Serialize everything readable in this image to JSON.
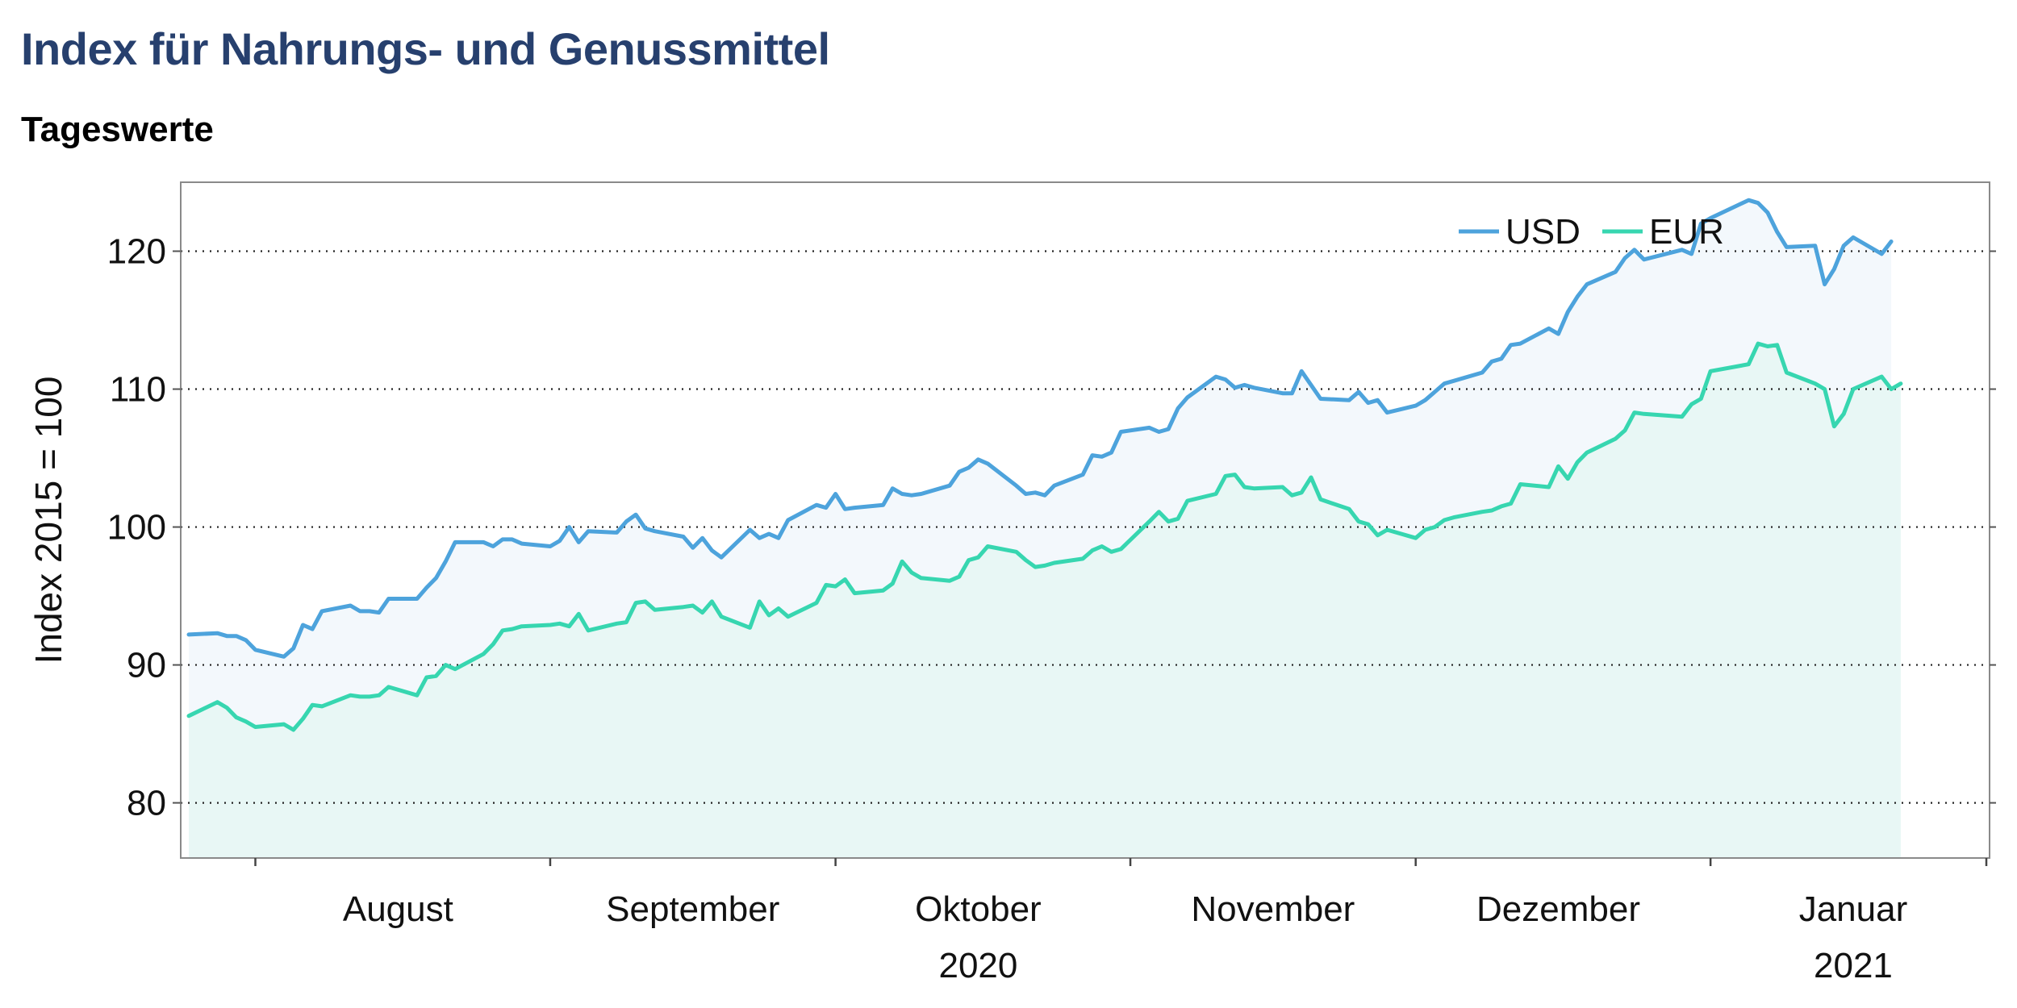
{
  "title": "Index für Nahrungs- und Genussmittel",
  "subtitle": "Tageswerte",
  "colors": {
    "usd": "#4da3dc",
    "eur": "#37d6b0",
    "usd_fill": "#f3f8fc",
    "eur_fill": "#e8f7f5",
    "title": "#27406e"
  },
  "chart_data": {
    "type": "area",
    "ylabel": "Index 2015 = 100",
    "ylim": [
      76,
      125
    ],
    "yticks": [
      80,
      90,
      100,
      110,
      120
    ],
    "grid": "horizontal dotted",
    "legend_position": "top-right",
    "x_start": "2020-07-24",
    "x_end": "2021-01-29",
    "month_boundaries": [
      "2020-07-31",
      "2020-08-31",
      "2020-09-30",
      "2020-10-31",
      "2020-11-30",
      "2020-12-31",
      "2021-01-29"
    ],
    "x_tick_labels": [
      {
        "label": "August",
        "center": "2020-08-15"
      },
      {
        "label": "September",
        "center": "2020-09-15"
      },
      {
        "label": "Oktober",
        "center": "2020-10-15"
      },
      {
        "label": "November",
        "center": "2020-11-15"
      },
      {
        "label": "Dezember",
        "center": "2020-12-15"
      },
      {
        "label": "Januar",
        "center": "2021-01-15"
      }
    ],
    "year_labels": [
      {
        "label": "2020",
        "center": "2020-10-15"
      },
      {
        "label": "2021",
        "center": "2021-01-15"
      }
    ],
    "series": [
      {
        "name": "USD",
        "points": [
          [
            "2020-07-24",
            92.2
          ],
          [
            "2020-07-27",
            92.3
          ],
          [
            "2020-07-28",
            92.1
          ],
          [
            "2020-07-29",
            92.1
          ],
          [
            "2020-07-30",
            91.8
          ],
          [
            "2020-07-31",
            91.1
          ],
          [
            "2020-08-03",
            90.6
          ],
          [
            "2020-08-04",
            91.2
          ],
          [
            "2020-08-05",
            92.9
          ],
          [
            "2020-08-06",
            92.6
          ],
          [
            "2020-08-07",
            93.9
          ],
          [
            "2020-08-10",
            94.3
          ],
          [
            "2020-08-11",
            93.9
          ],
          [
            "2020-08-12",
            93.9
          ],
          [
            "2020-08-13",
            93.8
          ],
          [
            "2020-08-14",
            94.8
          ],
          [
            "2020-08-17",
            94.8
          ],
          [
            "2020-08-18",
            95.6
          ],
          [
            "2020-08-19",
            96.3
          ],
          [
            "2020-08-20",
            97.5
          ],
          [
            "2020-08-21",
            98.9
          ],
          [
            "2020-08-24",
            98.9
          ],
          [
            "2020-08-25",
            98.6
          ],
          [
            "2020-08-26",
            99.1
          ],
          [
            "2020-08-27",
            99.1
          ],
          [
            "2020-08-28",
            98.8
          ],
          [
            "2020-08-31",
            98.6
          ],
          [
            "2020-09-01",
            99.0
          ],
          [
            "2020-09-02",
            100.0
          ],
          [
            "2020-09-03",
            98.9
          ],
          [
            "2020-09-04",
            99.7
          ],
          [
            "2020-09-07",
            99.6
          ],
          [
            "2020-09-08",
            100.4
          ],
          [
            "2020-09-09",
            100.9
          ],
          [
            "2020-09-10",
            99.9
          ],
          [
            "2020-09-11",
            99.7
          ],
          [
            "2020-09-14",
            99.3
          ],
          [
            "2020-09-15",
            98.5
          ],
          [
            "2020-09-16",
            99.2
          ],
          [
            "2020-09-17",
            98.3
          ],
          [
            "2020-09-18",
            97.8
          ],
          [
            "2020-09-21",
            99.8
          ],
          [
            "2020-09-22",
            99.2
          ],
          [
            "2020-09-23",
            99.5
          ],
          [
            "2020-09-24",
            99.2
          ],
          [
            "2020-09-25",
            100.5
          ],
          [
            "2020-09-28",
            101.6
          ],
          [
            "2020-09-29",
            101.4
          ],
          [
            "2020-09-30",
            102.4
          ],
          [
            "2020-10-01",
            101.3
          ],
          [
            "2020-10-02",
            101.4
          ],
          [
            "2020-10-05",
            101.6
          ],
          [
            "2020-10-06",
            102.8
          ],
          [
            "2020-10-07",
            102.4
          ],
          [
            "2020-10-08",
            102.3
          ],
          [
            "2020-10-09",
            102.4
          ],
          [
            "2020-10-12",
            103.0
          ],
          [
            "2020-10-13",
            104.0
          ],
          [
            "2020-10-14",
            104.3
          ],
          [
            "2020-10-15",
            104.9
          ],
          [
            "2020-10-16",
            104.6
          ],
          [
            "2020-10-19",
            103.0
          ],
          [
            "2020-10-20",
            102.4
          ],
          [
            "2020-10-21",
            102.5
          ],
          [
            "2020-10-22",
            102.3
          ],
          [
            "2020-10-23",
            103.0
          ],
          [
            "2020-10-26",
            103.8
          ],
          [
            "2020-10-27",
            105.2
          ],
          [
            "2020-10-28",
            105.1
          ],
          [
            "2020-10-29",
            105.4
          ],
          [
            "2020-10-30",
            106.9
          ],
          [
            "2020-11-02",
            107.2
          ],
          [
            "2020-11-03",
            106.9
          ],
          [
            "2020-11-04",
            107.1
          ],
          [
            "2020-11-05",
            108.6
          ],
          [
            "2020-11-06",
            109.4
          ],
          [
            "2020-11-09",
            110.9
          ],
          [
            "2020-11-10",
            110.7
          ],
          [
            "2020-11-11",
            110.1
          ],
          [
            "2020-11-12",
            110.3
          ],
          [
            "2020-11-13",
            110.1
          ],
          [
            "2020-11-16",
            109.7
          ],
          [
            "2020-11-17",
            109.7
          ],
          [
            "2020-11-18",
            111.3
          ],
          [
            "2020-11-19",
            110.3
          ],
          [
            "2020-11-20",
            109.3
          ],
          [
            "2020-11-23",
            109.2
          ],
          [
            "2020-11-24",
            109.8
          ],
          [
            "2020-11-25",
            109.0
          ],
          [
            "2020-11-26",
            109.2
          ],
          [
            "2020-11-27",
            108.3
          ],
          [
            "2020-11-30",
            108.8
          ],
          [
            "2020-12-01",
            109.2
          ],
          [
            "2020-12-02",
            109.8
          ],
          [
            "2020-12-03",
            110.4
          ],
          [
            "2020-12-04",
            110.6
          ],
          [
            "2020-12-07",
            111.2
          ],
          [
            "2020-12-08",
            112.0
          ],
          [
            "2020-12-09",
            112.2
          ],
          [
            "2020-12-10",
            113.2
          ],
          [
            "2020-12-11",
            113.3
          ],
          [
            "2020-12-14",
            114.4
          ],
          [
            "2020-12-15",
            114.0
          ],
          [
            "2020-12-16",
            115.6
          ],
          [
            "2020-12-17",
            116.7
          ],
          [
            "2020-12-18",
            117.6
          ],
          [
            "2020-12-21",
            118.5
          ],
          [
            "2020-12-22",
            119.5
          ],
          [
            "2020-12-23",
            120.1
          ],
          [
            "2020-12-24",
            119.4
          ],
          [
            "2020-12-28",
            120.1
          ],
          [
            "2020-12-29",
            119.8
          ],
          [
            "2020-12-30",
            122.0
          ],
          [
            "2020-12-31",
            122.4
          ],
          [
            "2021-01-04",
            123.7
          ],
          [
            "2021-01-05",
            123.5
          ],
          [
            "2021-01-06",
            122.8
          ],
          [
            "2021-01-07",
            121.4
          ],
          [
            "2021-01-08",
            120.3
          ],
          [
            "2021-01-11",
            120.4
          ],
          [
            "2021-01-12",
            117.6
          ],
          [
            "2021-01-13",
            118.7
          ],
          [
            "2021-01-14",
            120.4
          ],
          [
            "2021-01-15",
            121.0
          ],
          [
            "2021-01-18",
            119.8
          ],
          [
            "2021-01-19",
            120.7
          ]
        ]
      },
      {
        "name": "EUR",
        "points": [
          [
            "2020-07-24",
            86.3
          ],
          [
            "2020-07-27",
            87.3
          ],
          [
            "2020-07-28",
            86.9
          ],
          [
            "2020-07-29",
            86.2
          ],
          [
            "2020-07-30",
            85.9
          ],
          [
            "2020-07-31",
            85.5
          ],
          [
            "2020-08-03",
            85.7
          ],
          [
            "2020-08-04",
            85.3
          ],
          [
            "2020-08-05",
            86.1
          ],
          [
            "2020-08-06",
            87.1
          ],
          [
            "2020-08-07",
            87.0
          ],
          [
            "2020-08-10",
            87.8
          ],
          [
            "2020-08-11",
            87.7
          ],
          [
            "2020-08-12",
            87.7
          ],
          [
            "2020-08-13",
            87.8
          ],
          [
            "2020-08-14",
            88.4
          ],
          [
            "2020-08-17",
            87.8
          ],
          [
            "2020-08-18",
            89.1
          ],
          [
            "2020-08-19",
            89.2
          ],
          [
            "2020-08-20",
            90.0
          ],
          [
            "2020-08-21",
            89.7
          ],
          [
            "2020-08-24",
            90.8
          ],
          [
            "2020-08-25",
            91.5
          ],
          [
            "2020-08-26",
            92.5
          ],
          [
            "2020-08-27",
            92.6
          ],
          [
            "2020-08-28",
            92.8
          ],
          [
            "2020-08-31",
            92.9
          ],
          [
            "2020-09-01",
            93.0
          ],
          [
            "2020-09-02",
            92.8
          ],
          [
            "2020-09-03",
            93.7
          ],
          [
            "2020-09-04",
            92.5
          ],
          [
            "2020-09-07",
            93.0
          ],
          [
            "2020-09-08",
            93.1
          ],
          [
            "2020-09-09",
            94.5
          ],
          [
            "2020-09-10",
            94.6
          ],
          [
            "2020-09-11",
            94.0
          ],
          [
            "2020-09-14",
            94.2
          ],
          [
            "2020-09-15",
            94.3
          ],
          [
            "2020-09-16",
            93.8
          ],
          [
            "2020-09-17",
            94.6
          ],
          [
            "2020-09-18",
            93.5
          ],
          [
            "2020-09-21",
            92.7
          ],
          [
            "2020-09-22",
            94.6
          ],
          [
            "2020-09-23",
            93.6
          ],
          [
            "2020-09-24",
            94.1
          ],
          [
            "2020-09-25",
            93.5
          ],
          [
            "2020-09-28",
            94.5
          ],
          [
            "2020-09-29",
            95.8
          ],
          [
            "2020-09-30",
            95.7
          ],
          [
            "2020-10-01",
            96.2
          ],
          [
            "2020-10-02",
            95.2
          ],
          [
            "2020-10-05",
            95.4
          ],
          [
            "2020-10-06",
            95.9
          ],
          [
            "2020-10-07",
            97.5
          ],
          [
            "2020-10-08",
            96.7
          ],
          [
            "2020-10-09",
            96.3
          ],
          [
            "2020-10-12",
            96.1
          ],
          [
            "2020-10-13",
            96.4
          ],
          [
            "2020-10-14",
            97.6
          ],
          [
            "2020-10-15",
            97.8
          ],
          [
            "2020-10-16",
            98.6
          ],
          [
            "2020-10-19",
            98.2
          ],
          [
            "2020-10-20",
            97.6
          ],
          [
            "2020-10-21",
            97.1
          ],
          [
            "2020-10-22",
            97.2
          ],
          [
            "2020-10-23",
            97.4
          ],
          [
            "2020-10-26",
            97.7
          ],
          [
            "2020-10-27",
            98.3
          ],
          [
            "2020-10-28",
            98.6
          ],
          [
            "2020-10-29",
            98.2
          ],
          [
            "2020-10-30",
            98.4
          ],
          [
            "2020-11-02",
            100.4
          ],
          [
            "2020-11-03",
            101.1
          ],
          [
            "2020-11-04",
            100.4
          ],
          [
            "2020-11-05",
            100.6
          ],
          [
            "2020-11-06",
            101.9
          ],
          [
            "2020-11-09",
            102.4
          ],
          [
            "2020-11-10",
            103.7
          ],
          [
            "2020-11-11",
            103.8
          ],
          [
            "2020-11-12",
            102.9
          ],
          [
            "2020-11-13",
            102.8
          ],
          [
            "2020-11-16",
            102.9
          ],
          [
            "2020-11-17",
            102.3
          ],
          [
            "2020-11-18",
            102.5
          ],
          [
            "2020-11-19",
            103.6
          ],
          [
            "2020-11-20",
            102.0
          ],
          [
            "2020-11-23",
            101.3
          ],
          [
            "2020-11-24",
            100.4
          ],
          [
            "2020-11-25",
            100.2
          ],
          [
            "2020-11-26",
            99.4
          ],
          [
            "2020-11-27",
            99.8
          ],
          [
            "2020-11-30",
            99.2
          ],
          [
            "2020-12-01",
            99.8
          ],
          [
            "2020-12-02",
            100.0
          ],
          [
            "2020-12-03",
            100.5
          ],
          [
            "2020-12-04",
            100.7
          ],
          [
            "2020-12-07",
            101.1
          ],
          [
            "2020-12-08",
            101.2
          ],
          [
            "2020-12-09",
            101.5
          ],
          [
            "2020-12-10",
            101.7
          ],
          [
            "2020-12-11",
            103.1
          ],
          [
            "2020-12-14",
            102.9
          ],
          [
            "2020-12-15",
            104.4
          ],
          [
            "2020-12-16",
            103.5
          ],
          [
            "2020-12-17",
            104.7
          ],
          [
            "2020-12-18",
            105.4
          ],
          [
            "2020-12-21",
            106.4
          ],
          [
            "2020-12-22",
            107.0
          ],
          [
            "2020-12-23",
            108.3
          ],
          [
            "2020-12-24",
            108.2
          ],
          [
            "2020-12-28",
            108.0
          ],
          [
            "2020-12-29",
            108.9
          ],
          [
            "2020-12-30",
            109.3
          ],
          [
            "2020-12-31",
            111.3
          ],
          [
            "2021-01-04",
            111.8
          ],
          [
            "2021-01-05",
            113.3
          ],
          [
            "2021-01-06",
            113.1
          ],
          [
            "2021-01-07",
            113.2
          ],
          [
            "2021-01-08",
            111.2
          ],
          [
            "2021-01-11",
            110.4
          ],
          [
            "2021-01-12",
            110.0
          ],
          [
            "2021-01-13",
            107.3
          ],
          [
            "2021-01-14",
            108.2
          ],
          [
            "2021-01-15",
            110.0
          ],
          [
            "2021-01-18",
            110.9
          ],
          [
            "2021-01-19",
            110.0
          ],
          [
            "2021-01-20",
            110.4
          ]
        ]
      }
    ]
  }
}
